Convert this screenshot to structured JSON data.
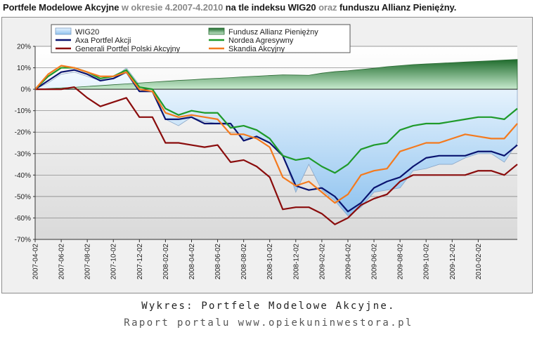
{
  "title": {
    "part1": "Portfele Modelowe Akcyjne",
    "part2": " w okresie 4.2007-4.2010 ",
    "part3": "na tle indeksu WIG20",
    "part4": " oraz ",
    "part5": "funduszu Allianz Pieniężny."
  },
  "caption": {
    "line1": "Wykres: Portfele Modelowe Akcyjne.",
    "line2": "Raport portalu www.opiekuninwestora.pl"
  },
  "chart_data": {
    "type": "line",
    "ylim": [
      -70,
      20
    ],
    "yticks": [
      20,
      10,
      0,
      -10,
      -20,
      -30,
      -40,
      -50,
      -60,
      -70
    ],
    "ytick_labels": [
      "20%",
      "10%",
      "0%",
      "-10%",
      "-20%",
      "-30%",
      "-40%",
      "-50%",
      "-60%",
      "-70%"
    ],
    "grid": true,
    "legend": "top",
    "x_tick_labels": [
      "2007-04-02",
      "2007-06-02",
      "2007-08-02",
      "2007-10-02",
      "2007-12-02",
      "2008-02-02",
      "2008-04-02",
      "2008-06-02",
      "2008-08-02",
      "2008-10-02",
      "2008-12-02",
      "2009-02-02",
      "2009-04-02",
      "2009-06-02",
      "2009-08-02",
      "2009-10-02",
      "2009-12-02",
      "2010-02-02"
    ],
    "n_points": 38,
    "series": [
      {
        "name": "WIG20",
        "kind": "area",
        "color": "#a8cdf0",
        "values": [
          0,
          3,
          7,
          8,
          6,
          4,
          5,
          10,
          2,
          1,
          -14,
          -17,
          -13,
          -15,
          -16,
          -17,
          -23,
          -22,
          -25,
          -30,
          -48,
          -35,
          -47,
          -52,
          -59,
          -55,
          -48,
          -47,
          -46,
          -38,
          -37,
          -35,
          -35,
          -32,
          -30,
          -30,
          -34,
          -25
        ]
      },
      {
        "name": "Fundusz Allianz Pieniężny",
        "kind": "area",
        "color": "#2e8b3e",
        "values": [
          0,
          0.3,
          0.6,
          0.9,
          1.3,
          1.7,
          2.1,
          2.5,
          2.9,
          3.3,
          3.7,
          4.1,
          4.4,
          4.8,
          5.1,
          5.4,
          5.8,
          6.1,
          6.4,
          6.7,
          6.6,
          6.5,
          7.5,
          8.2,
          8.6,
          9.2,
          9.8,
          10.5,
          11.0,
          11.5,
          11.8,
          12.1,
          12.4,
          12.7,
          13.0,
          13.3,
          13.6,
          13.9
        ]
      },
      {
        "name": "Axa Portfel Akcji",
        "kind": "line",
        "color": "#0a1470",
        "values": [
          0,
          4,
          8,
          9,
          7,
          4,
          5,
          8,
          -1,
          -1,
          -14,
          -14,
          -13,
          -16,
          -16,
          -16,
          -24,
          -22,
          -25,
          -31,
          -45,
          -47,
          -46,
          -50,
          -57,
          -53,
          -46,
          -43,
          -41,
          -36,
          -32,
          -31,
          -31,
          -31,
          -29,
          -29,
          -31,
          -26
        ]
      },
      {
        "name": "Nordea Agresywny",
        "kind": "line",
        "color": "#1f9a2a",
        "values": [
          0,
          6,
          10,
          10,
          8,
          5,
          6,
          9,
          1,
          0,
          -9,
          -12,
          -10,
          -11,
          -11,
          -18,
          -17,
          -19,
          -23,
          -31,
          -33,
          -32,
          -36,
          -39,
          -35,
          -28,
          -26,
          -25,
          -19,
          -17,
          -16,
          -16,
          -15,
          -14,
          -13,
          -13,
          -14,
          -9
        ]
      },
      {
        "name": "Generali Portfel Polski Akcyjny",
        "kind": "line",
        "color": "#8a0c0c",
        "values": [
          0,
          0,
          0,
          1,
          -4,
          -8,
          -6,
          -4,
          -13,
          -13,
          -25,
          -25,
          -26,
          -27,
          -26,
          -34,
          -33,
          -36,
          -41,
          -56,
          -55,
          -55,
          -58,
          -63,
          -60,
          -54,
          -51,
          -49,
          -43,
          -40,
          -40,
          -40,
          -40,
          -40,
          -38,
          -38,
          -40,
          -35
        ]
      },
      {
        "name": "Skandia Akcyjny",
        "kind": "line",
        "color": "#f47a1e",
        "values": [
          0,
          7,
          11,
          10,
          8,
          6,
          6,
          8,
          0,
          -1,
          -11,
          -13,
          -12,
          -13,
          -14,
          -21,
          -21,
          -23,
          -27,
          -41,
          -45,
          -43,
          -48,
          -53,
          -49,
          -40,
          -38,
          -37,
          -29,
          -27,
          -25,
          -25,
          -23,
          -21,
          -22,
          -23,
          -23,
          -16
        ]
      }
    ]
  }
}
